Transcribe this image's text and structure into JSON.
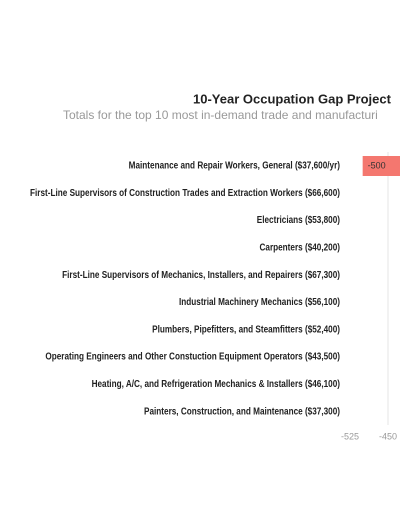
{
  "chart_data": {
    "type": "barh",
    "title": "10-Year Occupation Gap Project",
    "subtitle": "Totals for the top 10 most in-demand trade and manufacturi",
    "categories": [
      "Maintenance and Repair Workers, General ($37,600/yr)",
      "First-Line Supervisors of Construction Trades and Extraction Workers ($66,600)",
      "Electricians ($53,800)",
      "Carpenters ($40,200)",
      "First-Line Supervisors of Mechanics, Installers, and Repairers ($67,300)",
      "Industrial Machinery Mechanics ($56,100)",
      "Plumbers, Pipefitters, and Steamfitters ($52,400)",
      "Operating Engineers and Other Constuction Equipment Operators ($43,500)",
      "Heating, A/C, and Refrigeration Mechanics & Installers ($46,100)",
      "Painters, Construction, and Maintenance ($37,300)"
    ],
    "values": [
      -500,
      null,
      null,
      null,
      null,
      null,
      null,
      null,
      null,
      null
    ],
    "color": "#f4776f",
    "xlim": [
      -525,
      0
    ],
    "xticks": [
      -525,
      -450
    ],
    "grid": true
  }
}
